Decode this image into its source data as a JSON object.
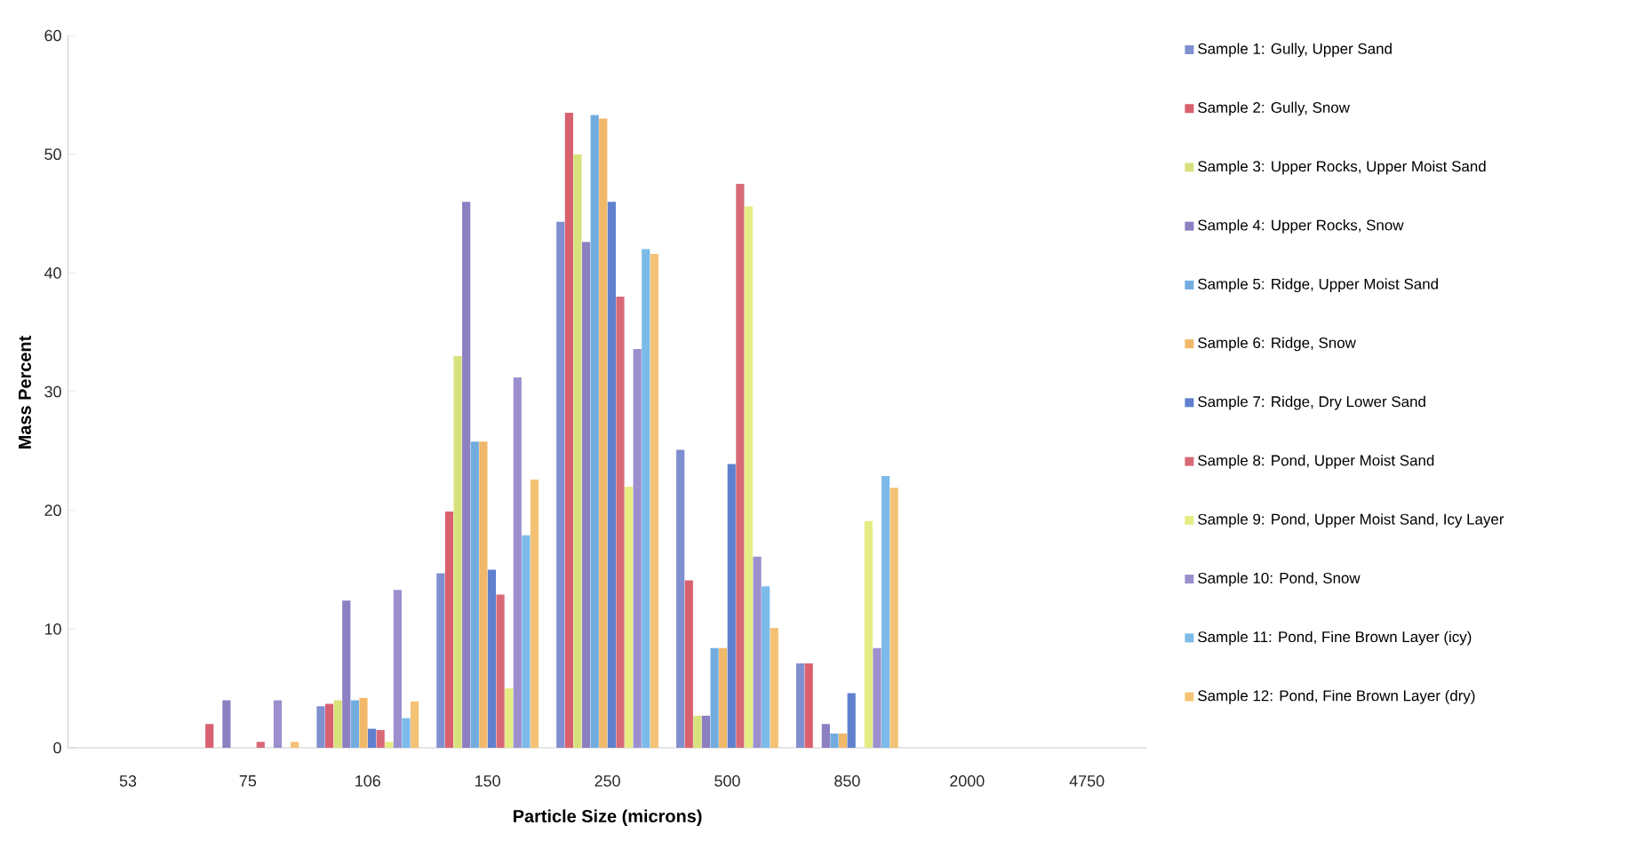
{
  "chart_data": {
    "type": "bar",
    "xlabel": "Particle Size (microns)",
    "ylabel": "Mass Percent",
    "categories": [
      "53",
      "75",
      "106",
      "150",
      "250",
      "500",
      "850",
      "2000",
      "4750"
    ],
    "ylim": [
      0,
      60
    ],
    "yticks": [
      0,
      10,
      20,
      30,
      40,
      50,
      60
    ],
    "legend": "right",
    "series": [
      {
        "name": "Sample 1: Gully, Upper Sand",
        "color": "#7f8fd0",
        "values": [
          0,
          0,
          3.5,
          14.7,
          44.3,
          25.1,
          7.1,
          0,
          0
        ]
      },
      {
        "name": "Sample 2: Gully, Snow",
        "color": "#d9606f",
        "values": [
          0,
          2,
          3.7,
          19.9,
          53.5,
          14.1,
          7.1,
          0,
          0
        ]
      },
      {
        "name": "Sample 3: Upper Rocks, Upper Moist Sand",
        "color": "#d8e27c",
        "values": [
          0,
          0,
          4,
          33,
          50,
          2.7,
          0,
          0,
          0
        ]
      },
      {
        "name": "Sample 4: Upper Rocks, Snow",
        "color": "#8c7fc2",
        "values": [
          0,
          4,
          12.4,
          46,
          42.6,
          2.7,
          2,
          0,
          0
        ]
      },
      {
        "name": "Sample 5: Ridge, Upper Moist Sand",
        "color": "#72acdf",
        "values": [
          0,
          0,
          4,
          25.8,
          53.3,
          8.4,
          1.2,
          0,
          0
        ]
      },
      {
        "name": "Sample 6: Ridge, Snow",
        "color": "#f0b868",
        "values": [
          0,
          0,
          4.2,
          25.8,
          53,
          8.4,
          1.2,
          0,
          0
        ]
      },
      {
        "name": "Sample 7: Ridge, Dry Lower Sand",
        "color": "#5f80cf",
        "values": [
          0,
          0,
          1.6,
          15,
          46,
          23.9,
          4.6,
          0,
          0
        ]
      },
      {
        "name": "Sample 8: Pond, Upper Moist Sand",
        "color": "#d86a78",
        "values": [
          0,
          0.5,
          1.5,
          12.9,
          38,
          47.5,
          0,
          0,
          0
        ]
      },
      {
        "name": "Sample 9: Pond, Upper Moist Sand, Icy Layer",
        "color": "#e6ec84",
        "values": [
          0,
          0,
          0.5,
          5,
          22,
          45.6,
          19.1,
          0,
          0
        ]
      },
      {
        "name": "Sample 10: Pond, Snow",
        "color": "#9c8fcd",
        "values": [
          0,
          4,
          13.3,
          31.2,
          33.6,
          16.1,
          8.4,
          0,
          0
        ]
      },
      {
        "name": "Sample 11: Pond, Fine Brown Layer (icy)",
        "color": "#7cbbe9",
        "values": [
          0,
          0,
          2.5,
          17.9,
          42,
          13.6,
          22.9,
          0,
          0
        ]
      },
      {
        "name": "Sample 12: Pond, Fine Brown Layer (dry)",
        "color": "#f4c274",
        "values": [
          0,
          0.5,
          3.9,
          22.6,
          41.6,
          10.1,
          21.9,
          0,
          0
        ]
      }
    ]
  }
}
